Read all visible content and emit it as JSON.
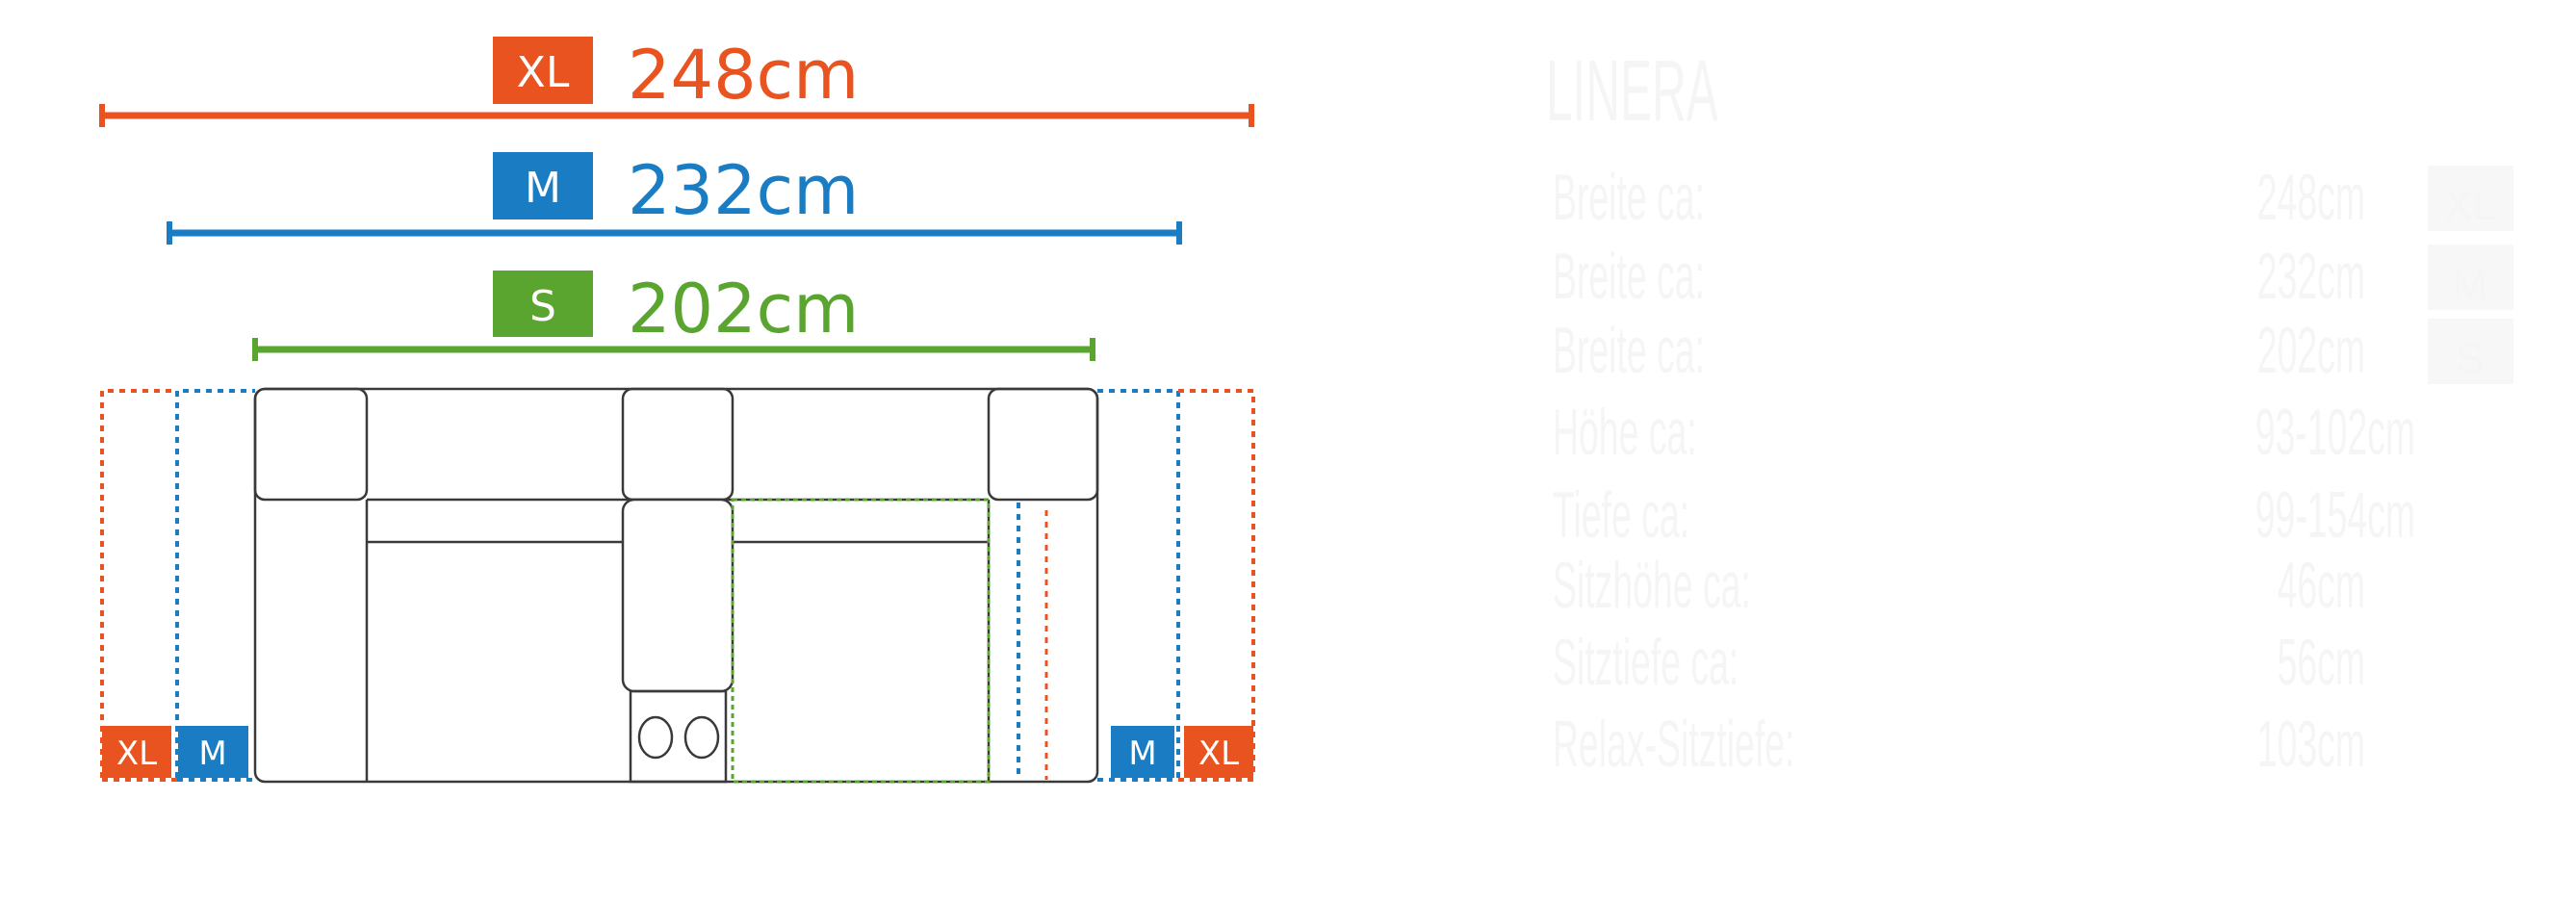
{
  "colors": {
    "xl": "#e8531f",
    "m": "#1a7dc4",
    "s": "#5aa52f",
    "outline": "#3a3a3a",
    "faint_text": "#f5f5f5"
  },
  "sizes": [
    {
      "badge": "XL",
      "width": "248cm"
    },
    {
      "badge": "M",
      "width": "232cm"
    },
    {
      "badge": "S",
      "width": "202cm"
    }
  ],
  "side_badges": {
    "left": [
      "XL",
      "M"
    ],
    "right": [
      "M",
      "XL"
    ]
  },
  "specs": {
    "title": "LINERA",
    "rows": [
      {
        "label": "Breite ca:",
        "value": "248cm",
        "badge": "XL"
      },
      {
        "label": "Breite ca:",
        "value": "232cm",
        "badge": "M"
      },
      {
        "label": "Breite ca:",
        "value": "202cm",
        "badge": "S"
      },
      {
        "label": "Höhe ca:",
        "value": "93-102cm"
      },
      {
        "label": "Tiefe ca:",
        "value": "99-154cm"
      },
      {
        "label": "Sitzhöhe ca:",
        "value": "46cm"
      },
      {
        "label": "Sitztiefe ca:",
        "value": "56cm"
      },
      {
        "label": "Relax-Sitztiefe:",
        "value": "103cm"
      }
    ]
  }
}
